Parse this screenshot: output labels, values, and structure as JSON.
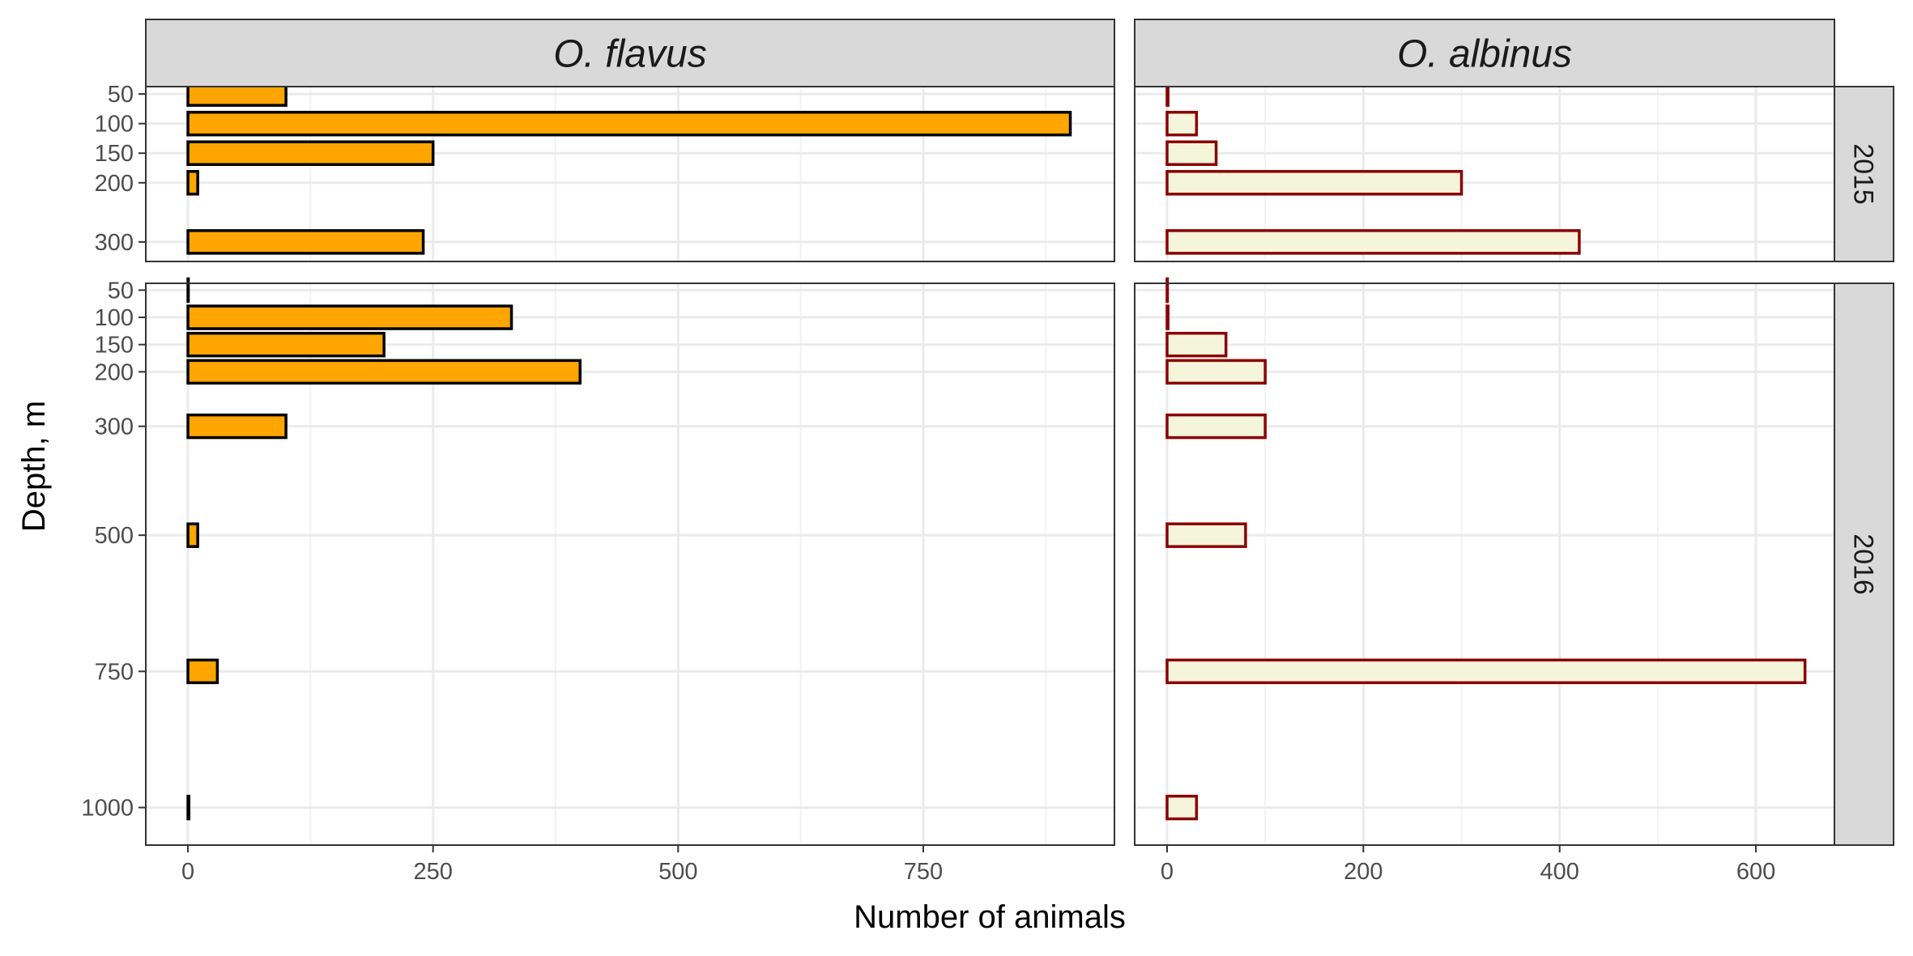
{
  "chart_data": {
    "type": "bar",
    "orientation": "horizontal",
    "xlabel": "Number of animals",
    "ylabel": "Depth, m",
    "facet_columns": [
      "O. flavus",
      "O. albinus"
    ],
    "facet_rows": [
      "2015",
      "2016"
    ],
    "x_ticks": {
      "O. flavus": [
        0,
        250,
        500,
        750
      ],
      "O. albinus": [
        0,
        200,
        400,
        600
      ]
    },
    "xlim": {
      "O. flavus": [
        -43,
        945
      ],
      "O. albinus": [
        -33,
        680
      ]
    },
    "grid": true,
    "colors": {
      "O. flavus": {
        "fill": "#FFA500",
        "stroke": "#000000"
      },
      "O. albinus": {
        "fill": "#F5F5DC",
        "stroke": "#8B0000"
      }
    },
    "panels": [
      {
        "species": "O. flavus",
        "year": "2015",
        "y_ticks": [
          50,
          100,
          150,
          200,
          300
        ],
        "ylim": [
          37.5,
          333
        ],
        "bars": [
          {
            "depth": 50,
            "value": 100
          },
          {
            "depth": 100,
            "value": 900
          },
          {
            "depth": 150,
            "value": 250
          },
          {
            "depth": 200,
            "value": 10
          },
          {
            "depth": 300,
            "value": 240
          }
        ]
      },
      {
        "species": "O. albinus",
        "year": "2015",
        "y_ticks": [
          50,
          100,
          150,
          200,
          300
        ],
        "ylim": [
          37.5,
          333
        ],
        "bars": [
          {
            "depth": 50,
            "value": 1
          },
          {
            "depth": 100,
            "value": 30
          },
          {
            "depth": 150,
            "value": 50
          },
          {
            "depth": 200,
            "value": 300
          },
          {
            "depth": 300,
            "value": 420
          }
        ]
      },
      {
        "species": "O. flavus",
        "year": "2016",
        "y_ticks": [
          50,
          100,
          150,
          200,
          300,
          500,
          750,
          1000
        ],
        "ylim": [
          37.5,
          1069
        ],
        "bars": [
          {
            "depth": 50,
            "value": 0
          },
          {
            "depth": 100,
            "value": 330
          },
          {
            "depth": 150,
            "value": 200
          },
          {
            "depth": 200,
            "value": 400
          },
          {
            "depth": 300,
            "value": 100
          },
          {
            "depth": 500,
            "value": 10
          },
          {
            "depth": 750,
            "value": 30
          },
          {
            "depth": 1000,
            "value": 1
          }
        ]
      },
      {
        "species": "O. albinus",
        "year": "2016",
        "y_ticks": [
          50,
          100,
          150,
          200,
          300,
          500,
          750,
          1000
        ],
        "ylim": [
          37.5,
          1069
        ],
        "bars": [
          {
            "depth": 50,
            "value": 0
          },
          {
            "depth": 100,
            "value": 1
          },
          {
            "depth": 150,
            "value": 60
          },
          {
            "depth": 200,
            "value": 100
          },
          {
            "depth": 300,
            "value": 100
          },
          {
            "depth": 500,
            "value": 80
          },
          {
            "depth": 750,
            "value": 650
          },
          {
            "depth": 1000,
            "value": 30
          }
        ]
      }
    ]
  }
}
